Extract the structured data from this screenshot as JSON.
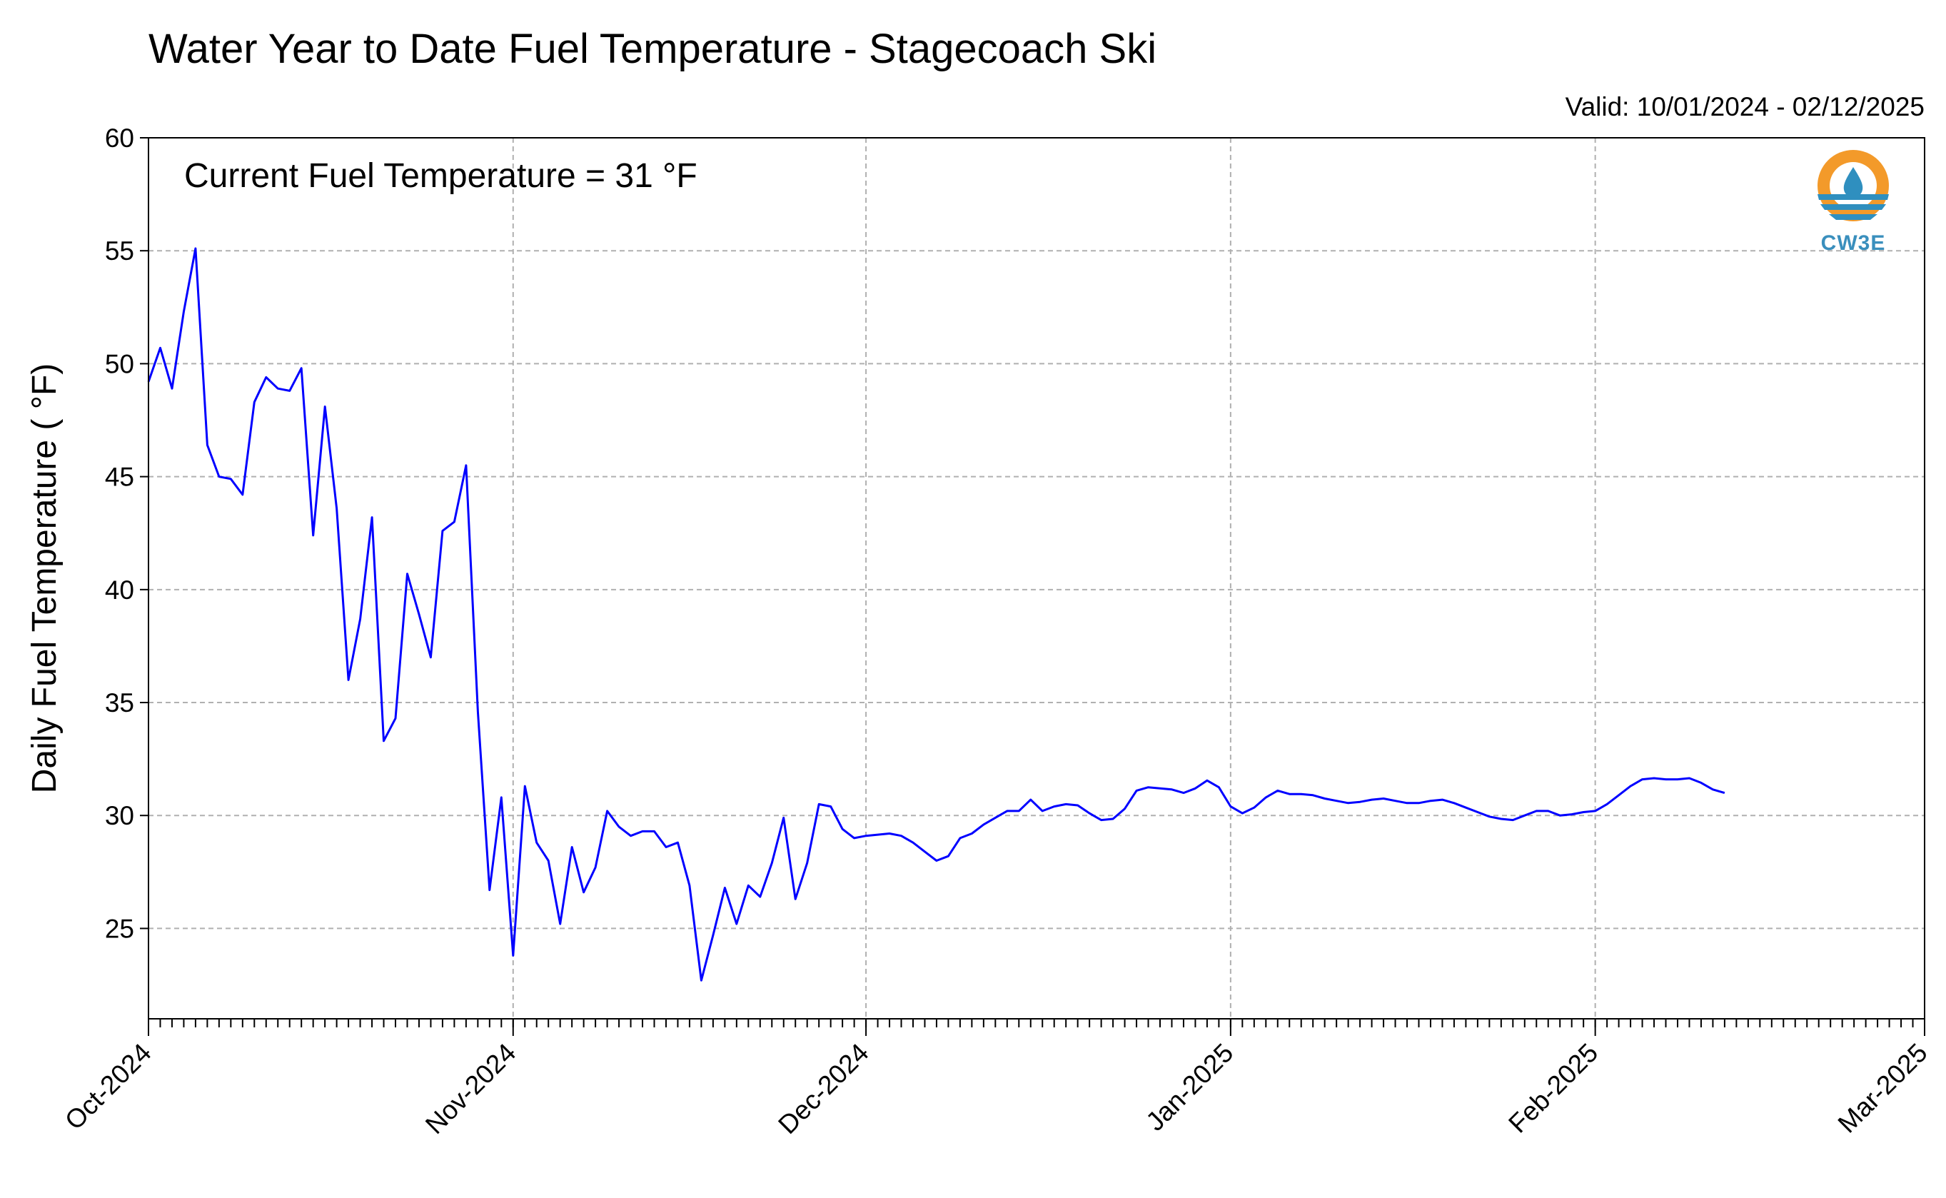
{
  "chart_data": {
    "type": "line",
    "title": "Water Year to Date Fuel Temperature - Stagecoach Ski",
    "subtitle": "Valid: 10/01/2024 - 02/12/2025",
    "annotation": "Current Fuel Temperature = 31  °F",
    "xlabel": "",
    "ylabel": "Daily Fuel Temperature ( °F)",
    "ylim": [
      21,
      60
    ],
    "xlim": [
      "2024-10-01",
      "2025-03-01"
    ],
    "y_ticks": [
      25,
      30,
      35,
      40,
      45,
      50,
      55,
      60
    ],
    "x_ticks": [
      {
        "date": "2024-10-01",
        "label": "Oct-2024"
      },
      {
        "date": "2024-11-01",
        "label": "Nov-2024"
      },
      {
        "date": "2024-12-01",
        "label": "Dec-2024"
      },
      {
        "date": "2025-01-01",
        "label": "Jan-2025"
      },
      {
        "date": "2025-02-01",
        "label": "Feb-2025"
      },
      {
        "date": "2025-03-01",
        "label": "Mar-2025"
      }
    ],
    "minor_x_ticks": "daily",
    "grid": true,
    "line_color": "#0000ff",
    "logo": {
      "text": "CW3E",
      "ring_color": "#f39a2a",
      "wave_color": "#2f8fbf"
    },
    "series": [
      {
        "start_date": "2024-10-01",
        "values": [
          49.2,
          50.7,
          48.9,
          52.3,
          55.1,
          46.4,
          45.0,
          44.9,
          44.2,
          48.3,
          49.4,
          48.9,
          48.8,
          49.8,
          42.4,
          48.1,
          43.6,
          36.0,
          38.7,
          43.2,
          33.3,
          34.3,
          40.7,
          38.9,
          37.0,
          42.6,
          43.0,
          45.5,
          34.6,
          26.7,
          30.8,
          23.8,
          31.3,
          28.8,
          28.0,
          25.2,
          28.6,
          26.6,
          27.7,
          30.2,
          29.5,
          29.1,
          29.3,
          29.3,
          28.6,
          28.8,
          26.9,
          22.7,
          24.7,
          26.8,
          25.2,
          26.9,
          26.4,
          27.9,
          29.9,
          26.3,
          27.9,
          30.5,
          30.4,
          29.4,
          29.0,
          29.1,
          29.15,
          29.2,
          29.1,
          28.8,
          28.4,
          28.0,
          28.2,
          29.0,
          29.2,
          29.6,
          29.9,
          30.2,
          30.2,
          30.7,
          30.2,
          30.4,
          30.5,
          30.45,
          30.1,
          29.8,
          29.85,
          30.3,
          31.1,
          31.25,
          31.2,
          31.15,
          31.0,
          31.2,
          31.55,
          31.25,
          30.4,
          30.1,
          30.35,
          30.8,
          31.1,
          30.95,
          30.95,
          30.9,
          30.75,
          30.65,
          30.55,
          30.6,
          30.7,
          30.75,
          30.65,
          30.55,
          30.55,
          30.65,
          30.7,
          30.55,
          30.35,
          30.15,
          29.95,
          29.85,
          29.8,
          30.0,
          30.2,
          30.2,
          30.0,
          30.05,
          30.15,
          30.2,
          30.5,
          30.9,
          31.3,
          31.6,
          31.65,
          31.6,
          31.6,
          31.65,
          31.45,
          31.15,
          31.0
        ]
      }
    ]
  }
}
